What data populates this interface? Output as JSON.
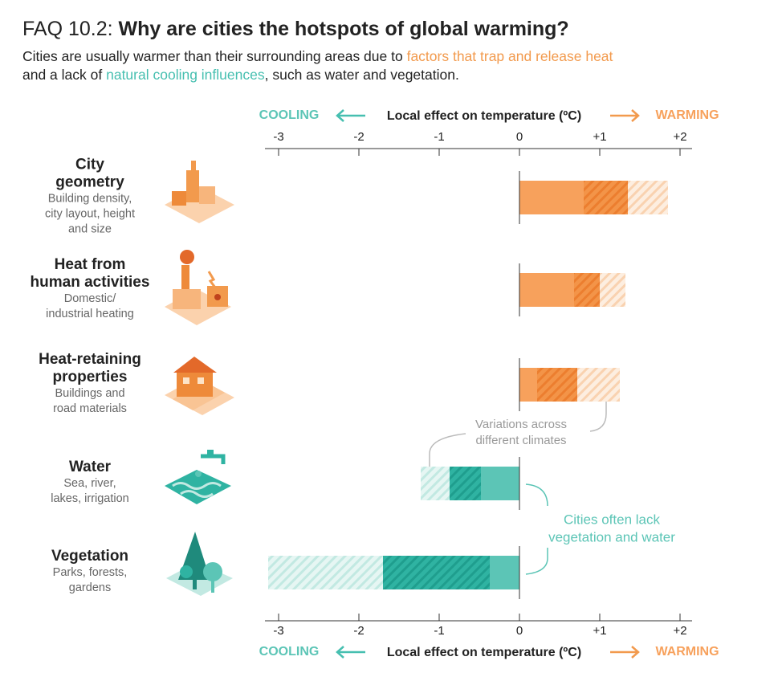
{
  "header": {
    "prefix": "FAQ 10.2:",
    "title": "Why are cities the hotspots of global warming?",
    "subtitle_line1": [
      "Cities are usually warmer than their surrounding areas due to ",
      "factors that trap and release heat"
    ],
    "subtitle_line2": [
      "and a lack of ",
      "natural cooling influences",
      ", such as water and vegetation."
    ]
  },
  "chart_data": {
    "type": "range-bar",
    "xlabel": "Local effect on temperature (ºC)",
    "cooling_label": "COOLING",
    "warming_label": "WARMING",
    "warm_color": "#f7a15c",
    "cool_color": "#5cc5b6",
    "categories": [
      [
        "City",
        "geometry"
      ],
      [
        "Heat from",
        "human activities"
      ],
      [
        "Heat-retaining",
        "properties"
      ],
      [
        "Water"
      ],
      [
        "Vegetation"
      ]
    ],
    "descriptions": [
      [
        "Building density,",
        "city layout, height",
        "and size"
      ],
      [
        "Domestic/",
        "industrial heating"
      ],
      [
        "Buildings and",
        "road materials"
      ],
      [
        "Sea, river,",
        "lakes, irrigation"
      ],
      [
        "Parks, forests,",
        "gardens"
      ]
    ],
    "values": [
      1.35,
      1.0,
      0.72,
      -0.87,
      -1.7
    ],
    "ranges": [
      [
        0.8,
        1.85
      ],
      [
        0.68,
        1.32
      ],
      [
        0.22,
        1.25
      ],
      [
        -1.23,
        -0.48
      ],
      [
        -3.13,
        -0.37
      ]
    ],
    "xlim": [
      -3.17,
      2.15
    ],
    "xticks": [
      -3,
      -2,
      -1,
      0,
      {
        "value": 1,
        "label": "+1"
      },
      {
        "value": 2,
        "label": "+2"
      }
    ],
    "annotations": [
      [
        "Variations across",
        "different climates"
      ],
      [
        "Cities often lack",
        "vegetation and water"
      ]
    ]
  }
}
